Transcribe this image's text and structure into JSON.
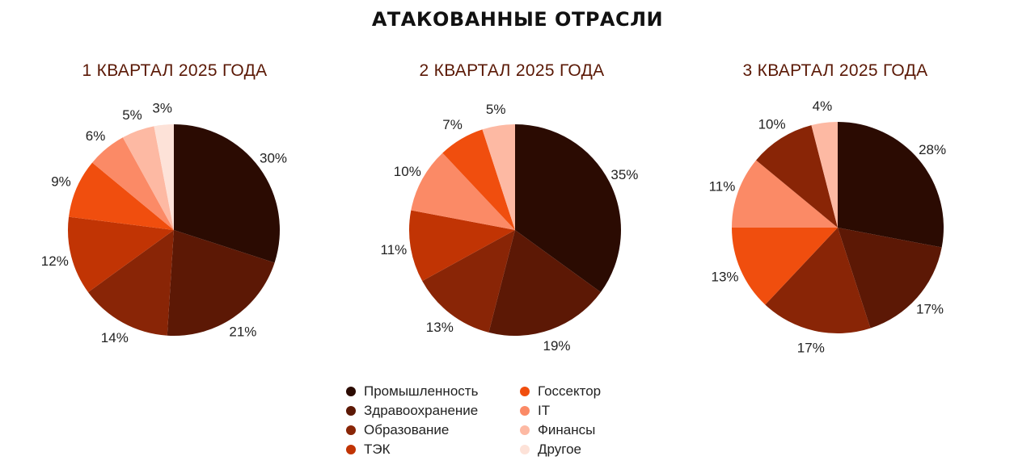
{
  "title": "АТАКОВАННЫЕ ОТРАСЛИ",
  "colors": [
    "#2b0b02",
    "#5c1805",
    "#892506",
    "#c13404",
    "#f04e0e",
    "#fb8a66",
    "#fdb9a3",
    "#fde2d8"
  ],
  "legend": [
    "Промышленность",
    "Здравоохранение",
    "Образование",
    "ТЭК",
    "Госсектор",
    "IT",
    "Финансы",
    "Другое"
  ],
  "chart_data": [
    {
      "type": "pie",
      "title": "1 КВАРТАЛ 2025 ГОДА",
      "categories": [
        "Промышленность",
        "Здравоохранение",
        "Образование",
        "ТЭК",
        "Госсектор",
        "IT",
        "Финансы",
        "Другое"
      ],
      "values": [
        30,
        21,
        14,
        12,
        9,
        6,
        5,
        3
      ],
      "labels": [
        "30%",
        "21%",
        "14%",
        "12%",
        "9%",
        "6%",
        "5%",
        "3%"
      ]
    },
    {
      "type": "pie",
      "title": "2 КВАРТАЛ 2025 ГОДА",
      "categories": [
        "Промышленность",
        "Здравоохранение",
        "Образование",
        "ТЭК",
        "IT",
        "Госсектор",
        "Финансы"
      ],
      "values": [
        35,
        19,
        13,
        11,
        10,
        7,
        5
      ],
      "labels": [
        "35%",
        "19%",
        "13%",
        "11%",
        "10%",
        "7%",
        "5%"
      ]
    },
    {
      "type": "pie",
      "title": "3 КВАРТАЛ 2025 ГОДА",
      "categories": [
        "Промышленность",
        "Здравоохранение",
        "Образование",
        "Госсектор",
        "IT",
        "Образование",
        "Финансы"
      ],
      "values": [
        28,
        17,
        17,
        13,
        11,
        10,
        4
      ],
      "labels": [
        "28%",
        "17%",
        "17%",
        "13%",
        "11%",
        "10%",
        "4%"
      ]
    }
  ]
}
